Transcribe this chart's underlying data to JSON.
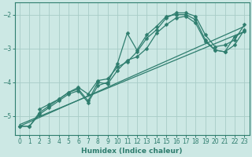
{
  "xlabel": "Humidex (Indice chaleur)",
  "ylabel": "",
  "xlim": [
    -0.5,
    23.5
  ],
  "ylim": [
    -5.55,
    -1.65
  ],
  "yticks": [
    -5,
    -4,
    -3,
    -2
  ],
  "xticks": [
    0,
    1,
    2,
    3,
    4,
    5,
    6,
    7,
    8,
    9,
    10,
    11,
    12,
    13,
    14,
    15,
    16,
    17,
    18,
    19,
    20,
    21,
    22,
    23
  ],
  "bg_color": "#cce8e4",
  "line_color": "#2e7d6e",
  "grid_color": "#a8ccc7",
  "lines": [
    {
      "x": [
        0,
        1,
        2,
        3,
        4,
        5,
        6,
        7,
        8,
        9,
        10,
        11,
        12,
        13,
        14,
        15,
        16,
        17,
        18,
        19,
        20,
        21,
        22,
        23
      ],
      "y": [
        -5.3,
        -5.3,
        -4.95,
        -4.75,
        -4.55,
        -4.35,
        -4.25,
        -4.6,
        -4.1,
        -4.0,
        -3.45,
        -2.55,
        -3.05,
        -2.6,
        -2.35,
        -2.05,
        -2.0,
        -2.0,
        -2.15,
        -2.75,
        -3.05,
        -3.1,
        -2.65,
        -2.5
      ],
      "marker": "D",
      "markersize": 2.5,
      "linewidth": 0.9
    },
    {
      "x": [
        0,
        1,
        2,
        3,
        4,
        5,
        6,
        7,
        8,
        9,
        10,
        11,
        12,
        13,
        14,
        15,
        16,
        17,
        18,
        19,
        20,
        21,
        22,
        23
      ],
      "y": [
        -5.3,
        -5.3,
        -4.9,
        -4.7,
        -4.5,
        -4.3,
        -4.2,
        -4.55,
        -4.0,
        -4.05,
        -3.65,
        -3.35,
        -3.25,
        -3.0,
        -2.55,
        -2.3,
        -2.1,
        -2.05,
        -2.25,
        -2.8,
        -3.05,
        -3.1,
        -2.9,
        -2.45
      ],
      "marker": "D",
      "markersize": 2.5,
      "linewidth": 0.9
    },
    {
      "x": [
        0,
        23
      ],
      "y": [
        -5.3,
        -2.35
      ],
      "marker": null,
      "markersize": 0,
      "linewidth": 0.9
    },
    {
      "x": [
        0,
        23
      ],
      "y": [
        -5.25,
        -2.5
      ],
      "marker": null,
      "markersize": 0,
      "linewidth": 0.9
    },
    {
      "x": [
        2,
        3,
        4,
        5,
        6,
        7,
        8,
        9,
        10,
        11,
        12,
        13,
        14,
        15,
        16,
        17,
        18,
        19,
        20,
        21,
        22,
        23
      ],
      "y": [
        -4.8,
        -4.65,
        -4.5,
        -4.3,
        -4.15,
        -4.35,
        -3.95,
        -3.9,
        -3.55,
        -3.4,
        -3.1,
        -2.7,
        -2.45,
        -2.1,
        -1.95,
        -1.95,
        -2.05,
        -2.6,
        -2.95,
        -2.9,
        -2.75,
        -2.3
      ],
      "marker": "D",
      "markersize": 2.5,
      "linewidth": 0.9
    }
  ]
}
